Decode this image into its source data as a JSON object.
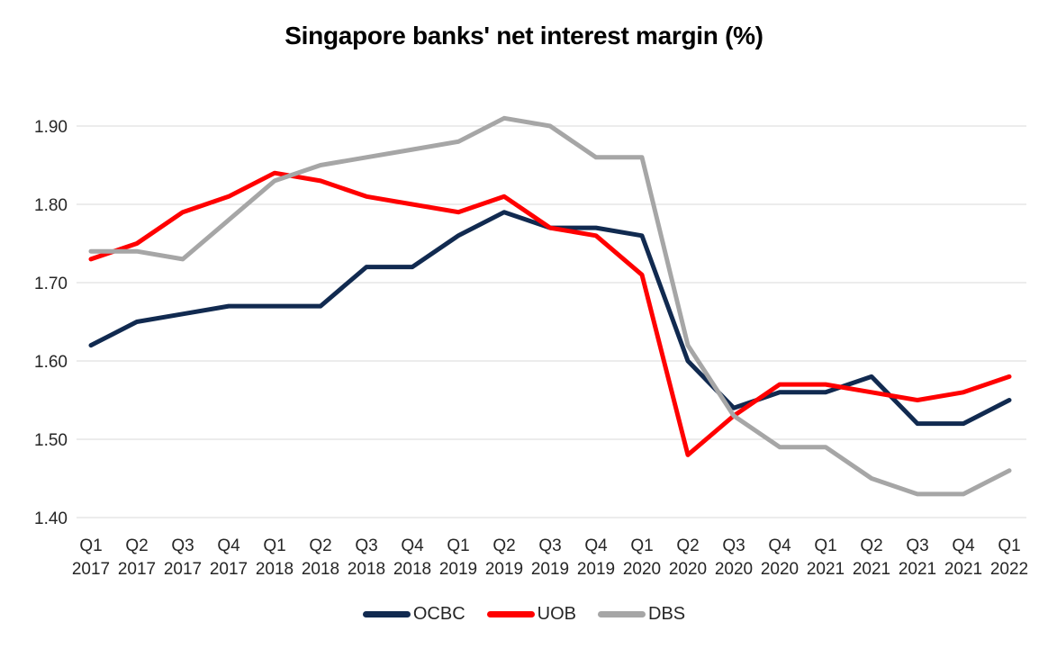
{
  "title": "Singapore banks' net interest margin (%)",
  "chart_data": {
    "type": "line",
    "title": "Singapore banks' net interest margin (%)",
    "xlabel": "",
    "ylabel": "",
    "ylim": [
      1.4,
      1.9
    ],
    "grid": true,
    "legend_position": "bottom",
    "y_ticks": [
      "1.40",
      "1.50",
      "1.60",
      "1.70",
      "1.80",
      "1.90"
    ],
    "categories": [
      [
        "Q1",
        "2017"
      ],
      [
        "Q2",
        "2017"
      ],
      [
        "Q3",
        "2017"
      ],
      [
        "Q4",
        "2017"
      ],
      [
        "Q1",
        "2018"
      ],
      [
        "Q2",
        "2018"
      ],
      [
        "Q3",
        "2018"
      ],
      [
        "Q4",
        "2018"
      ],
      [
        "Q1",
        "2019"
      ],
      [
        "Q2",
        "2019"
      ],
      [
        "Q3",
        "2019"
      ],
      [
        "Q4",
        "2019"
      ],
      [
        "Q1",
        "2020"
      ],
      [
        "Q2",
        "2020"
      ],
      [
        "Q3",
        "2020"
      ],
      [
        "Q4",
        "2020"
      ],
      [
        "Q1",
        "2021"
      ],
      [
        "Q2",
        "2021"
      ],
      [
        "Q3",
        "2021"
      ],
      [
        "Q4",
        "2021"
      ],
      [
        "Q1",
        "2022"
      ]
    ],
    "series": [
      {
        "name": "OCBC",
        "color": "#112a50",
        "values": [
          1.62,
          1.65,
          1.66,
          1.67,
          1.67,
          1.67,
          1.72,
          1.72,
          1.76,
          1.79,
          1.77,
          1.77,
          1.76,
          1.6,
          1.54,
          1.56,
          1.56,
          1.58,
          1.52,
          1.52,
          1.55
        ]
      },
      {
        "name": "UOB",
        "color": "#ff0000",
        "values": [
          1.73,
          1.75,
          1.79,
          1.81,
          1.84,
          1.83,
          1.81,
          1.8,
          1.79,
          1.81,
          1.77,
          1.76,
          1.71,
          1.48,
          1.53,
          1.57,
          1.57,
          1.56,
          1.55,
          1.56,
          1.58
        ]
      },
      {
        "name": "DBS",
        "color": "#a6a6a6",
        "values": [
          1.74,
          1.74,
          1.73,
          1.78,
          1.83,
          1.85,
          1.86,
          1.87,
          1.88,
          1.91,
          1.9,
          1.86,
          1.86,
          1.62,
          1.53,
          1.49,
          1.49,
          1.45,
          1.43,
          1.43,
          1.46
        ]
      }
    ],
    "style": {
      "gridline_color": "#d9d9d9",
      "tick_label_color": "#262626",
      "line_width": 5
    }
  }
}
